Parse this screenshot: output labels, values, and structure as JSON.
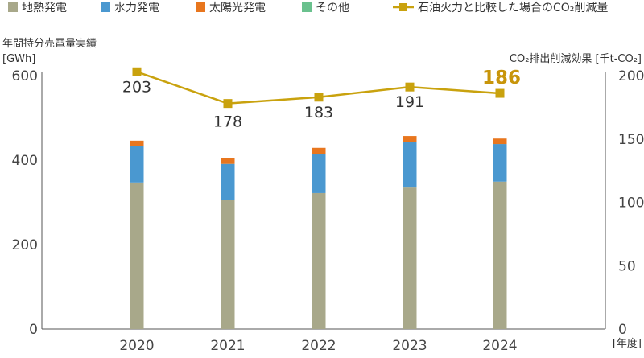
{
  "chart_data": {
    "type": "bar",
    "stacked": true,
    "categories": [
      "2020",
      "2021",
      "2022",
      "2023",
      "2024"
    ],
    "xlabel": "[年度]",
    "y_left": {
      "title_line1": "年間持分売電量実績",
      "title_line2": "[GWh]",
      "range": [
        0,
        600
      ],
      "ticks": [
        "0",
        "200",
        "400",
        "600"
      ]
    },
    "y_right": {
      "title": "CO₂排出削減効果 [千t-CO₂]",
      "range": [
        0,
        200
      ],
      "ticks": [
        "0",
        "50",
        "100",
        "150",
        "200"
      ]
    },
    "grid": false,
    "legend_position": "top",
    "series": [
      {
        "name": "地熱発電",
        "kind": "bar",
        "axis": "left",
        "color": "#a8a88a",
        "values": [
          347,
          306,
          322,
          335,
          349
        ]
      },
      {
        "name": "水力発電",
        "kind": "bar",
        "axis": "left",
        "color": "#4a98d0",
        "values": [
          86,
          85,
          92,
          107,
          89
        ]
      },
      {
        "name": "太陽光発電",
        "kind": "bar",
        "axis": "left",
        "color": "#e8761e",
        "values": [
          13,
          13,
          15,
          15,
          13
        ]
      },
      {
        "name": "その他",
        "kind": "bar",
        "axis": "left",
        "color": "#6ac18e",
        "values": [
          0,
          0,
          0,
          0,
          0
        ]
      },
      {
        "name": "石油火力と比較した場合のCO₂削減量",
        "kind": "line",
        "axis": "right",
        "color": "#c9a20e",
        "values": [
          203,
          178,
          183,
          191,
          186
        ],
        "labels": [
          "203",
          "178",
          "183",
          "191",
          "186"
        ],
        "highlight_index": 4,
        "highlight_color": "#c8950a"
      }
    ]
  }
}
